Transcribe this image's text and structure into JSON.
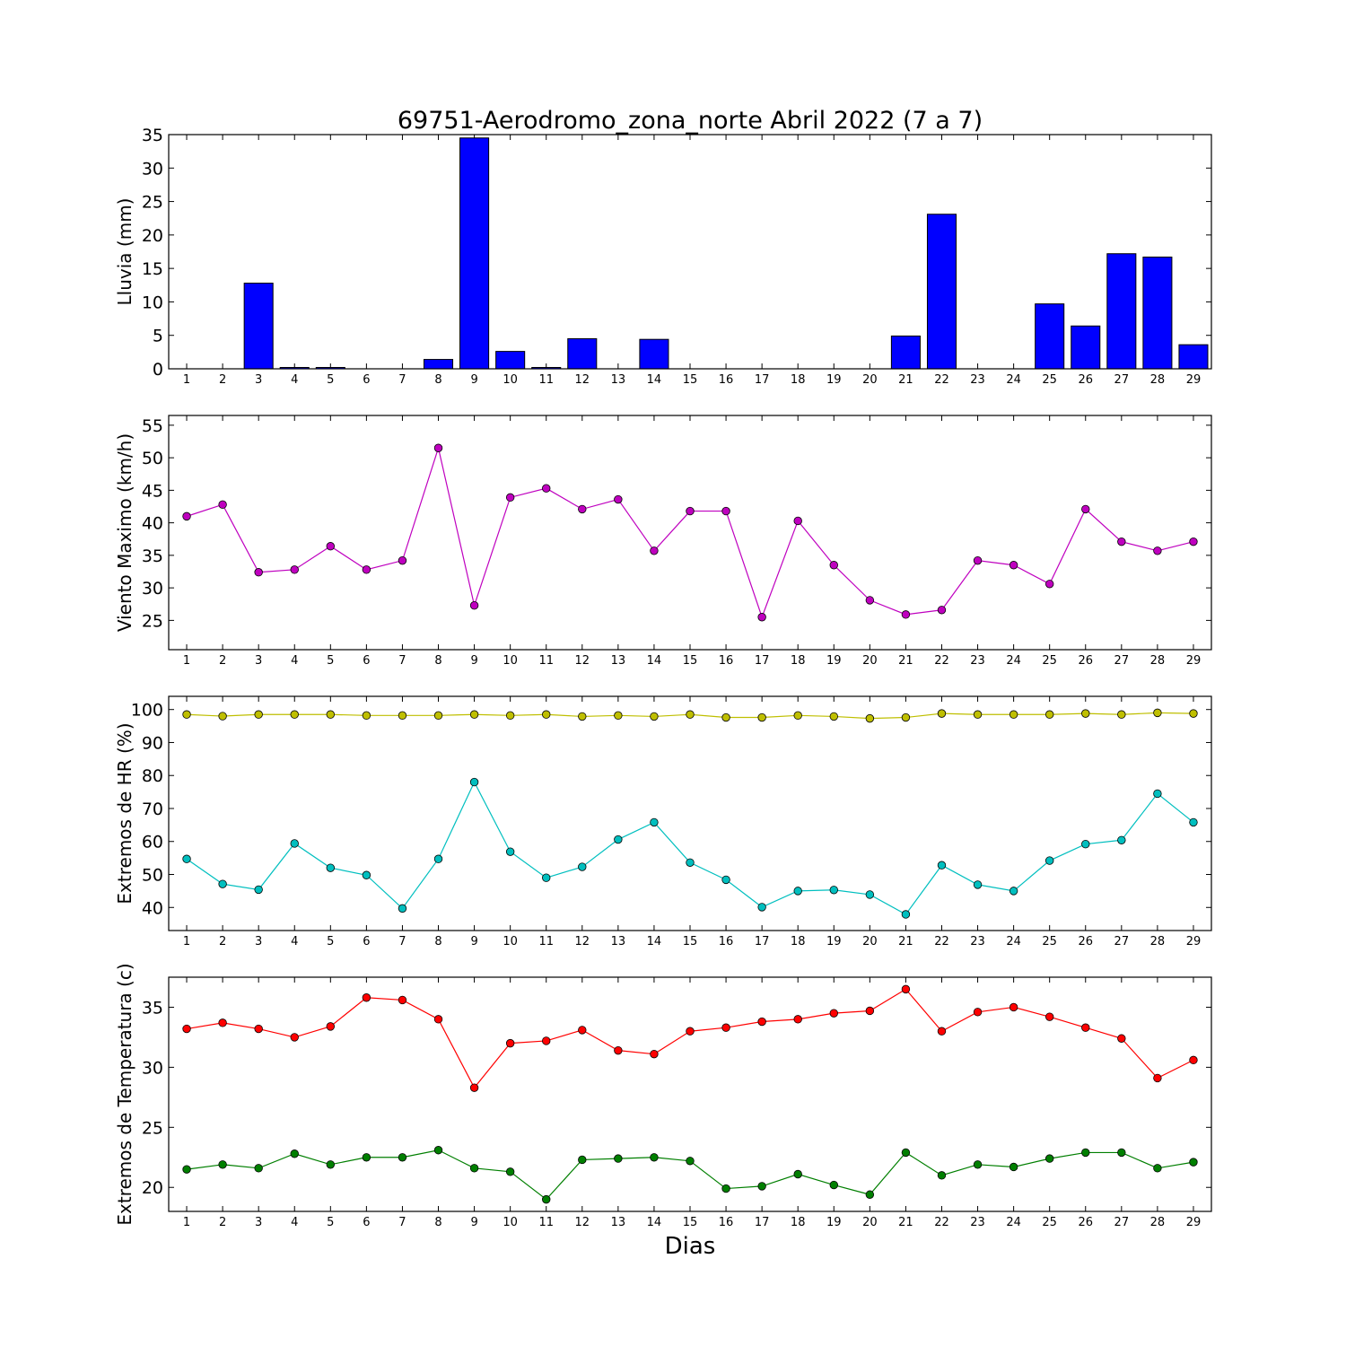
{
  "title": "69751-Aerodromo_zona_norte Abril 2022  (7 a 7)",
  "xlabel": "Dias",
  "chart_data": [
    {
      "type": "bar",
      "ylabel": "Lluvia (mm)",
      "ylim": [
        0,
        35
      ],
      "yticks": [
        0,
        5,
        10,
        15,
        20,
        25,
        30,
        35
      ],
      "x": [
        1,
        2,
        3,
        4,
        5,
        6,
        7,
        8,
        9,
        10,
        11,
        12,
        13,
        14,
        15,
        16,
        17,
        18,
        19,
        20,
        21,
        22,
        23,
        24,
        25,
        26,
        27,
        28,
        29
      ],
      "series": [
        {
          "color": "#0000ff",
          "values": [
            0,
            0,
            12.8,
            0.2,
            0.2,
            0,
            0,
            1.4,
            34.5,
            2.6,
            0.2,
            4.5,
            0,
            4.4,
            0,
            0,
            0,
            0,
            0,
            0,
            4.9,
            23.1,
            0,
            0,
            9.7,
            6.4,
            17.2,
            16.7,
            3.6
          ]
        }
      ]
    },
    {
      "type": "line",
      "ylabel": "Viento Maximo (km/h)",
      "ylim": [
        20.5,
        56.5
      ],
      "yticks": [
        25,
        30,
        35,
        40,
        45,
        50,
        55
      ],
      "x": [
        1,
        2,
        3,
        4,
        5,
        6,
        7,
        8,
        9,
        10,
        11,
        12,
        13,
        14,
        15,
        16,
        17,
        18,
        19,
        20,
        21,
        22,
        23,
        24,
        25,
        26,
        27,
        28,
        29
      ],
      "series": [
        {
          "color": "#bf00bf",
          "values": [
            41.0,
            42.8,
            32.4,
            32.8,
            36.4,
            32.8,
            34.2,
            51.5,
            27.3,
            43.9,
            45.3,
            42.1,
            43.6,
            35.7,
            41.8,
            41.8,
            25.5,
            40.3,
            33.5,
            28.1,
            25.9,
            26.6,
            34.2,
            33.5,
            30.6,
            42.1,
            37.1,
            35.7,
            37.1
          ]
        }
      ]
    },
    {
      "type": "line",
      "ylabel": "Extremos de HR (%)",
      "ylim": [
        33,
        104
      ],
      "yticks": [
        40,
        50,
        60,
        70,
        80,
        90,
        100
      ],
      "x": [
        1,
        2,
        3,
        4,
        5,
        6,
        7,
        8,
        9,
        10,
        11,
        12,
        13,
        14,
        15,
        16,
        17,
        18,
        19,
        20,
        21,
        22,
        23,
        24,
        25,
        26,
        27,
        28,
        29
      ],
      "series": [
        {
          "color": "#bfbf00",
          "values": [
            98.5,
            98,
            98.5,
            98.5,
            98.5,
            98.2,
            98.2,
            98.2,
            98.5,
            98.2,
            98.5,
            97.9,
            98.2,
            97.9,
            98.5,
            97.6,
            97.6,
            98.2,
            97.9,
            97.3,
            97.6,
            98.8,
            98.5,
            98.5,
            98.5,
            98.8,
            98.5,
            99,
            98.8
          ]
        },
        {
          "color": "#00bfbf",
          "values": [
            54.7,
            47.1,
            45.4,
            59.4,
            52.0,
            49.8,
            39.7,
            54.7,
            78.0,
            56.9,
            49.0,
            52.3,
            60.6,
            65.8,
            53.6,
            48.4,
            40.1,
            45.0,
            45.3,
            43.9,
            37.9,
            52.8,
            46.9,
            45.0,
            54.2,
            59.2,
            60.4,
            74.5,
            65.8
          ]
        }
      ]
    },
    {
      "type": "line",
      "ylabel": "Extremos de Temperatura (c)",
      "ylim": [
        18,
        37.5
      ],
      "yticks": [
        20,
        25,
        30,
        35
      ],
      "x": [
        1,
        2,
        3,
        4,
        5,
        6,
        7,
        8,
        9,
        10,
        11,
        12,
        13,
        14,
        15,
        16,
        17,
        18,
        19,
        20,
        21,
        22,
        23,
        24,
        25,
        26,
        27,
        28,
        29
      ],
      "series": [
        {
          "color": "#ff0000",
          "values": [
            33.2,
            33.7,
            33.2,
            32.5,
            33.4,
            35.8,
            35.6,
            34.0,
            28.3,
            32.0,
            32.2,
            33.1,
            31.4,
            31.1,
            33.0,
            33.3,
            33.8,
            34.0,
            34.5,
            34.7,
            36.5,
            33.0,
            34.6,
            35.0,
            34.2,
            33.3,
            32.4,
            29.1,
            30.6
          ]
        },
        {
          "color": "#007f00",
          "values": [
            21.5,
            21.9,
            21.6,
            22.8,
            21.9,
            22.5,
            22.5,
            23.1,
            21.6,
            21.3,
            19.0,
            22.3,
            22.4,
            22.5,
            22.2,
            19.9,
            20.1,
            21.1,
            20.2,
            19.4,
            22.9,
            21.0,
            21.9,
            21.7,
            22.4,
            22.9,
            22.9,
            21.6,
            22.1
          ]
        }
      ]
    }
  ]
}
